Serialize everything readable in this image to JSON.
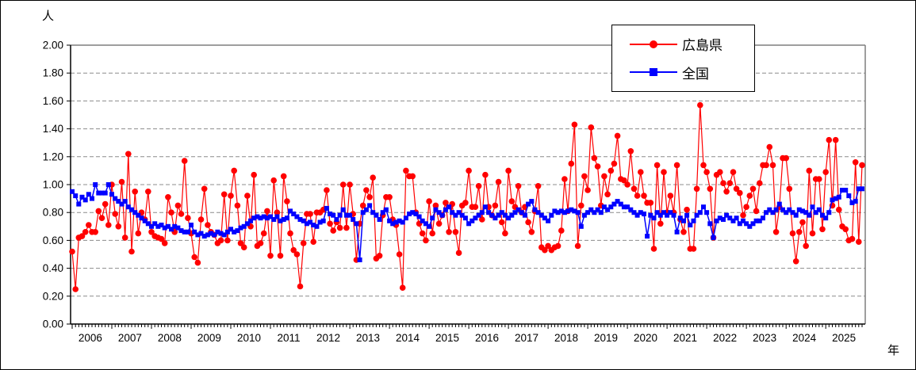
{
  "labels": {
    "y_axis_unit": "人",
    "x_axis_unit": "年"
  },
  "legend": {
    "items": [
      {
        "label": "広島県"
      },
      {
        "label": "全国"
      }
    ]
  },
  "chart_data": {
    "type": "line",
    "title": "",
    "ylabel": "人",
    "xlabel": "年",
    "ylim": [
      0.0,
      2.0
    ],
    "ytick_step": 0.2,
    "ytick_labels": [
      "0.00",
      "0.20",
      "0.40",
      "0.60",
      "0.80",
      "1.00",
      "1.20",
      "1.40",
      "1.60",
      "1.80",
      "2.00"
    ],
    "x_years": [
      2006,
      2007,
      2008,
      2009,
      2010,
      2011,
      2012,
      2013,
      2014,
      2015,
      2016,
      2017,
      2018,
      2019,
      2020,
      2021,
      2022,
      2023,
      2024,
      2025
    ],
    "x_resolution": "monthly",
    "grid": "horizontal-dashed",
    "legend_position": "top-right-inside",
    "series": [
      {
        "name": "広島県",
        "color": "#ff0000",
        "marker": "circle",
        "values": [
          0.52,
          0.25,
          0.62,
          0.63,
          0.66,
          0.71,
          0.66,
          0.66,
          0.81,
          0.76,
          0.86,
          0.71,
          1.0,
          0.79,
          0.7,
          1.02,
          0.62,
          1.22,
          0.52,
          0.95,
          0.65,
          0.8,
          0.75,
          0.95,
          0.66,
          0.63,
          0.62,
          0.61,
          0.58,
          0.91,
          0.8,
          0.66,
          0.85,
          0.79,
          1.17,
          0.76,
          0.65,
          0.48,
          0.44,
          0.75,
          0.97,
          0.71,
          0.66,
          0.64,
          0.58,
          0.6,
          0.93,
          0.6,
          0.92,
          1.1,
          0.85,
          0.58,
          0.55,
          0.92,
          0.7,
          1.07,
          0.56,
          0.58,
          0.65,
          0.81,
          0.49,
          1.03,
          0.8,
          0.49,
          1.06,
          0.88,
          0.65,
          0.53,
          0.5,
          0.27,
          0.58,
          0.79,
          0.79,
          0.59,
          0.8,
          0.8,
          0.82,
          0.96,
          0.72,
          0.67,
          0.73,
          0.69,
          1.0,
          0.69,
          1.0,
          0.79,
          0.46,
          0.72,
          0.85,
          0.96,
          0.91,
          1.05,
          0.47,
          0.49,
          0.78,
          0.91,
          0.91,
          0.75,
          0.71,
          0.5,
          0.26,
          1.1,
          1.06,
          1.06,
          0.8,
          0.72,
          0.65,
          0.6,
          0.88,
          0.65,
          0.85,
          0.72,
          0.78,
          0.87,
          0.66,
          0.86,
          0.66,
          0.51,
          0.85,
          0.87,
          1.1,
          0.84,
          0.84,
          0.99,
          0.75,
          1.07,
          0.84,
          0.78,
          0.85,
          1.02,
          0.73,
          0.65,
          1.1,
          0.88,
          0.84,
          0.99,
          0.8,
          0.84,
          0.73,
          0.66,
          0.81,
          0.99,
          0.55,
          0.53,
          0.56,
          0.53,
          0.55,
          0.56,
          0.67,
          1.04,
          0.81,
          1.15,
          1.43,
          0.56,
          0.85,
          1.06,
          0.96,
          1.41,
          1.19,
          1.13,
          0.85,
          1.06,
          0.93,
          1.1,
          1.15,
          1.35,
          1.04,
          1.03,
          1.0,
          1.24,
          0.97,
          0.92,
          1.09,
          0.92,
          0.87,
          0.87,
          0.54,
          1.14,
          0.72,
          1.09,
          0.8,
          0.92,
          0.8,
          1.14,
          0.75,
          0.66,
          0.82,
          0.54,
          0.54,
          0.97,
          1.57,
          1.14,
          1.09,
          0.97,
          0.62,
          1.07,
          1.09,
          1.01,
          0.95,
          1.01,
          1.09,
          0.97,
          0.94,
          0.78,
          0.84,
          0.92,
          0.97,
          0.81,
          1.01,
          1.14,
          1.14,
          1.27,
          1.14,
          0.66,
          0.84,
          1.19,
          1.19,
          0.97,
          0.65,
          0.45,
          0.66,
          0.73,
          0.56,
          1.1,
          0.65,
          1.04,
          1.04,
          0.68,
          1.09,
          1.32,
          0.85,
          1.32,
          0.82,
          0.7,
          0.68,
          0.6,
          0.61,
          1.16,
          0.59,
          1.14
        ]
      },
      {
        "name": "全国",
        "color": "#0000ff",
        "marker": "square",
        "values": [
          0.95,
          0.92,
          0.86,
          0.91,
          0.89,
          0.93,
          0.9,
          1.0,
          0.94,
          0.94,
          0.94,
          1.0,
          0.93,
          0.9,
          0.88,
          0.86,
          0.88,
          0.84,
          0.82,
          0.8,
          0.78,
          0.76,
          0.74,
          0.72,
          0.7,
          0.72,
          0.7,
          0.71,
          0.69,
          0.7,
          0.68,
          0.7,
          0.69,
          0.67,
          0.66,
          0.66,
          0.71,
          0.66,
          0.64,
          0.65,
          0.63,
          0.64,
          0.65,
          0.64,
          0.66,
          0.65,
          0.64,
          0.66,
          0.68,
          0.66,
          0.67,
          0.69,
          0.7,
          0.72,
          0.74,
          0.76,
          0.77,
          0.76,
          0.77,
          0.76,
          0.77,
          0.75,
          0.77,
          0.74,
          0.75,
          0.76,
          0.81,
          0.79,
          0.77,
          0.75,
          0.74,
          0.72,
          0.73,
          0.71,
          0.7,
          0.73,
          0.74,
          0.83,
          0.79,
          0.78,
          0.75,
          0.78,
          0.82,
          0.78,
          0.78,
          0.75,
          0.72,
          0.46,
          0.8,
          0.82,
          0.85,
          0.8,
          0.78,
          0.75,
          0.8,
          0.82,
          0.74,
          0.72,
          0.73,
          0.74,
          0.73,
          0.76,
          0.79,
          0.8,
          0.79,
          0.77,
          0.74,
          0.72,
          0.7,
          0.76,
          0.82,
          0.8,
          0.78,
          0.82,
          0.84,
          0.8,
          0.78,
          0.8,
          0.78,
          0.76,
          0.72,
          0.74,
          0.76,
          0.78,
          0.8,
          0.84,
          0.8,
          0.78,
          0.76,
          0.78,
          0.8,
          0.78,
          0.76,
          0.78,
          0.8,
          0.82,
          0.8,
          0.78,
          0.86,
          0.88,
          0.82,
          0.8,
          0.78,
          0.76,
          0.74,
          0.78,
          0.81,
          0.8,
          0.81,
          0.8,
          0.81,
          0.82,
          0.81,
          0.8,
          0.7,
          0.78,
          0.8,
          0.82,
          0.8,
          0.82,
          0.8,
          0.84,
          0.82,
          0.84,
          0.86,
          0.88,
          0.86,
          0.84,
          0.84,
          0.82,
          0.8,
          0.78,
          0.8,
          0.79,
          0.63,
          0.78,
          0.76,
          0.8,
          0.78,
          0.8,
          0.78,
          0.8,
          0.78,
          0.66,
          0.76,
          0.74,
          0.78,
          0.71,
          0.74,
          0.78,
          0.8,
          0.84,
          0.8,
          0.72,
          0.62,
          0.74,
          0.76,
          0.75,
          0.78,
          0.76,
          0.74,
          0.76,
          0.72,
          0.74,
          0.72,
          0.7,
          0.72,
          0.74,
          0.74,
          0.76,
          0.8,
          0.82,
          0.8,
          0.82,
          0.86,
          0.82,
          0.8,
          0.82,
          0.8,
          0.78,
          0.82,
          0.81,
          0.8,
          0.78,
          0.84,
          0.8,
          0.82,
          0.78,
          0.76,
          0.8,
          0.89,
          0.9,
          0.91,
          0.96,
          0.96,
          0.92,
          0.87,
          0.88,
          0.97,
          0.97
        ]
      }
    ]
  }
}
